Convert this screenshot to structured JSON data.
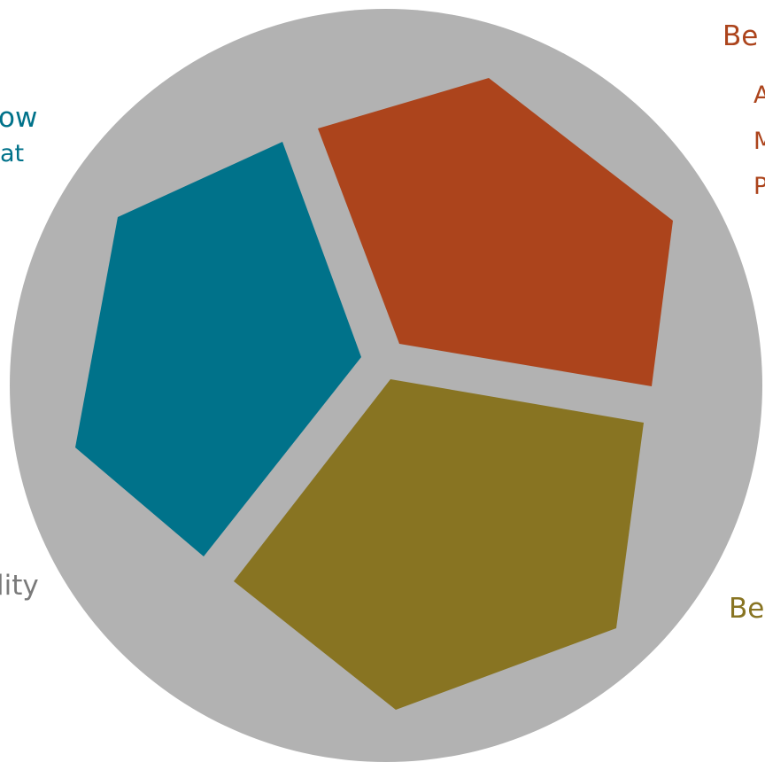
{
  "colors": {
    "background": "#ffffff",
    "circle": "#b2b2b2",
    "teal": "#00728a",
    "rust": "#ac441c",
    "olive": "#887422",
    "grey_text": "#7a7a7a"
  },
  "labels": {
    "teal_line_1": "ow",
    "teal_line_2": "at",
    "grey_line_1": "lity",
    "rust_title": "Be",
    "rust_item_1": "A",
    "rust_item_2": "M",
    "rust_item_3": "P",
    "olive_title": "Be"
  }
}
